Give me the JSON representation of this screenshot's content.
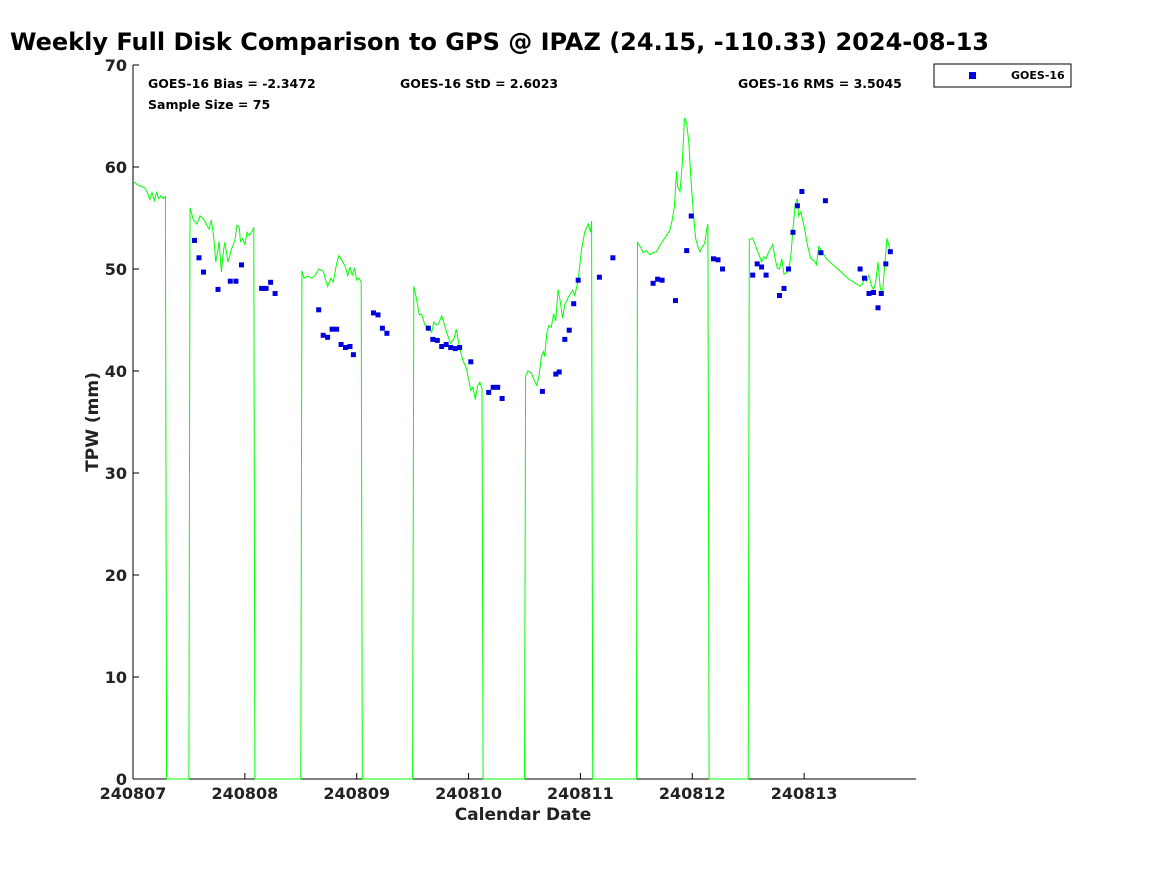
{
  "chart_data": {
    "type": "line+scatter",
    "title": "Weekly Full Disk Comparison to GPS @ IPAZ (24.15, -110.33) 2024-08-13",
    "xlabel": "Calendar Date",
    "ylabel": "TPW (mm)",
    "xlim": [
      0,
      7
    ],
    "ylim": [
      0,
      70
    ],
    "xticks": [
      0,
      1,
      2,
      3,
      4,
      5,
      6
    ],
    "xtick_labels": [
      "240807",
      "240808",
      "240809",
      "240810",
      "240811",
      "240812",
      "240813"
    ],
    "yticks": [
      0,
      10,
      20,
      30,
      40,
      50,
      60,
      70
    ],
    "grid": false,
    "legend_position": "top-right (outside plot)",
    "stats": {
      "bias": "GOES-16 Bias = -2.3472",
      "std": "GOES-16 StD = 2.6023",
      "rms": "GOES-16 RMS = 3.5045",
      "sample": "Sample Size = 75"
    },
    "series": [
      {
        "type": "line",
        "color": "#00ff00",
        "points": [
          [
            0.0,
            58.6
          ],
          [
            0.05,
            58.2
          ],
          [
            0.1,
            58.0
          ],
          [
            0.13,
            57.5
          ],
          [
            0.15,
            56.8
          ],
          [
            0.17,
            57.5
          ],
          [
            0.19,
            56.7
          ],
          [
            0.21,
            57.5
          ],
          [
            0.23,
            56.9
          ],
          [
            0.25,
            57.2
          ],
          [
            0.27,
            56.9
          ],
          [
            0.29,
            57.1
          ],
          [
            0.3,
            0
          ],
          [
            0.5,
            0
          ],
          [
            0.51,
            56.0
          ],
          [
            0.54,
            54.8
          ],
          [
            0.57,
            54.4
          ],
          [
            0.6,
            55.2
          ],
          [
            0.63,
            54.9
          ],
          [
            0.66,
            54.3
          ],
          [
            0.68,
            53.9
          ],
          [
            0.7,
            54.8
          ],
          [
            0.72,
            53.3
          ],
          [
            0.74,
            50.7
          ],
          [
            0.76,
            51.9
          ],
          [
            0.77,
            52.7
          ],
          [
            0.79,
            49.7
          ],
          [
            0.81,
            51.9
          ],
          [
            0.82,
            52.6
          ],
          [
            0.85,
            50.7
          ],
          [
            0.88,
            51.9
          ],
          [
            0.91,
            52.8
          ],
          [
            0.93,
            54.3
          ],
          [
            0.95,
            54.1
          ],
          [
            0.96,
            52.7
          ],
          [
            0.98,
            53.0
          ],
          [
            1.0,
            52.4
          ],
          [
            1.02,
            53.6
          ],
          [
            1.04,
            53.3
          ],
          [
            1.07,
            53.8
          ],
          [
            1.08,
            54.1
          ],
          [
            1.09,
            0
          ],
          [
            1.5,
            0
          ],
          [
            1.51,
            49.8
          ],
          [
            1.53,
            49.1
          ],
          [
            1.56,
            49.3
          ],
          [
            1.6,
            49.1
          ],
          [
            1.63,
            49.4
          ],
          [
            1.66,
            50.0
          ],
          [
            1.7,
            49.8
          ],
          [
            1.72,
            49.0
          ],
          [
            1.74,
            48.3
          ],
          [
            1.77,
            49.1
          ],
          [
            1.79,
            48.7
          ],
          [
            1.82,
            50.5
          ],
          [
            1.84,
            51.3
          ],
          [
            1.87,
            50.8
          ],
          [
            1.9,
            50.2
          ],
          [
            1.92,
            49.3
          ],
          [
            1.94,
            50.2
          ],
          [
            1.96,
            49.4
          ],
          [
            1.98,
            50.1
          ],
          [
            2.0,
            48.9
          ],
          [
            2.02,
            49.1
          ],
          [
            2.04,
            48.7
          ],
          [
            2.05,
            0
          ],
          [
            2.5,
            0
          ],
          [
            2.51,
            48.3
          ],
          [
            2.53,
            47.3
          ],
          [
            2.56,
            45.5
          ],
          [
            2.58,
            45.6
          ],
          [
            2.61,
            44.5
          ],
          [
            2.64,
            44.3
          ],
          [
            2.67,
            43.8
          ],
          [
            2.69,
            44.8
          ],
          [
            2.71,
            44.5
          ],
          [
            2.73,
            44.6
          ],
          [
            2.76,
            45.4
          ],
          [
            2.78,
            44.7
          ],
          [
            2.81,
            43.6
          ],
          [
            2.84,
            42.7
          ],
          [
            2.87,
            43.2
          ],
          [
            2.89,
            44.1
          ],
          [
            2.92,
            42.3
          ],
          [
            2.95,
            41.0
          ],
          [
            2.98,
            40.3
          ],
          [
            3.0,
            39.2
          ],
          [
            3.02,
            38.1
          ],
          [
            3.04,
            38.4
          ],
          [
            3.06,
            37.2
          ],
          [
            3.08,
            38.5
          ],
          [
            3.1,
            38.9
          ],
          [
            3.12,
            38.3
          ],
          [
            3.13,
            0
          ],
          [
            3.5,
            0
          ],
          [
            3.51,
            39.5
          ],
          [
            3.53,
            40.0
          ],
          [
            3.56,
            39.8
          ],
          [
            3.59,
            39.0
          ],
          [
            3.61,
            38.6
          ],
          [
            3.63,
            39.5
          ],
          [
            3.65,
            41.4
          ],
          [
            3.67,
            41.9
          ],
          [
            3.68,
            41.4
          ],
          [
            3.7,
            43.8
          ],
          [
            3.72,
            44.5
          ],
          [
            3.74,
            44.3
          ],
          [
            3.76,
            45.6
          ],
          [
            3.78,
            44.9
          ],
          [
            3.8,
            48.0
          ],
          [
            3.82,
            46.8
          ],
          [
            3.84,
            45.2
          ],
          [
            3.86,
            46.5
          ],
          [
            3.9,
            47.4
          ],
          [
            3.93,
            47.9
          ],
          [
            3.95,
            47.4
          ],
          [
            3.98,
            48.9
          ],
          [
            4.01,
            51.9
          ],
          [
            4.04,
            53.7
          ],
          [
            4.07,
            54.4
          ],
          [
            4.09,
            53.6
          ],
          [
            4.1,
            54.7
          ],
          [
            4.11,
            0
          ],
          [
            4.5,
            0
          ],
          [
            4.51,
            52.6
          ],
          [
            4.54,
            52.1
          ],
          [
            4.56,
            51.6
          ],
          [
            4.59,
            51.8
          ],
          [
            4.62,
            51.4
          ],
          [
            4.65,
            51.6
          ],
          [
            4.68,
            51.7
          ],
          [
            4.71,
            52.3
          ],
          [
            4.74,
            52.8
          ],
          [
            4.77,
            53.3
          ],
          [
            4.8,
            53.8
          ],
          [
            4.82,
            54.8
          ],
          [
            4.84,
            56.1
          ],
          [
            4.86,
            59.6
          ],
          [
            4.87,
            58.0
          ],
          [
            4.89,
            57.6
          ],
          [
            4.91,
            60.2
          ],
          [
            4.93,
            64.8
          ],
          [
            4.95,
            64.3
          ],
          [
            4.97,
            62.3
          ],
          [
            4.99,
            58.4
          ],
          [
            5.01,
            55.5
          ],
          [
            5.03,
            53.0
          ],
          [
            5.05,
            52.2
          ],
          [
            5.07,
            51.7
          ],
          [
            5.09,
            52.2
          ],
          [
            5.11,
            52.5
          ],
          [
            5.13,
            53.9
          ],
          [
            5.14,
            54.4
          ],
          [
            5.15,
            0
          ],
          [
            5.5,
            0
          ],
          [
            5.51,
            52.9
          ],
          [
            5.54,
            53.0
          ],
          [
            5.56,
            52.5
          ],
          [
            5.58,
            51.8
          ],
          [
            5.6,
            51.3
          ],
          [
            5.62,
            50.7
          ],
          [
            5.64,
            51.2
          ],
          [
            5.66,
            51.0
          ],
          [
            5.68,
            51.6
          ],
          [
            5.7,
            52.0
          ],
          [
            5.72,
            52.4
          ],
          [
            5.74,
            51.0
          ],
          [
            5.76,
            50.1
          ],
          [
            5.78,
            50.0
          ],
          [
            5.8,
            51.0
          ],
          [
            5.82,
            49.5
          ],
          [
            5.84,
            49.6
          ],
          [
            5.86,
            49.9
          ],
          [
            5.88,
            51.1
          ],
          [
            5.9,
            54.0
          ],
          [
            5.92,
            56.3
          ],
          [
            5.94,
            56.9
          ],
          [
            5.95,
            55.2
          ],
          [
            5.97,
            55.6
          ],
          [
            6.0,
            54.2
          ],
          [
            6.03,
            52.3
          ],
          [
            6.06,
            51.0
          ],
          [
            6.09,
            50.8
          ],
          [
            6.11,
            50.4
          ],
          [
            6.13,
            52.2
          ],
          [
            6.16,
            51.7
          ],
          [
            6.2,
            51.0
          ],
          [
            6.3,
            50.0
          ],
          [
            6.4,
            49.0
          ],
          [
            6.5,
            48.3
          ],
          [
            6.52,
            48.5
          ],
          [
            6.54,
            49.2
          ],
          [
            6.56,
            48.8
          ],
          [
            6.58,
            49.4
          ],
          [
            6.6,
            48.4
          ],
          [
            6.62,
            48.0
          ],
          [
            6.64,
            48.7
          ],
          [
            6.66,
            50.7
          ],
          [
            6.68,
            48.2
          ],
          [
            6.7,
            47.4
          ],
          [
            6.72,
            50.3
          ],
          [
            6.74,
            53.0
          ],
          [
            6.76,
            52.2
          ],
          [
            6.77,
            51.5
          ]
        ]
      },
      {
        "name": "GOES-16",
        "type": "scatter",
        "color": "#0000dd",
        "points": [
          [
            0.55,
            52.8
          ],
          [
            0.59,
            51.1
          ],
          [
            0.63,
            49.7
          ],
          [
            0.76,
            48.0
          ],
          [
            0.87,
            48.8
          ],
          [
            0.92,
            48.8
          ],
          [
            0.97,
            50.4
          ],
          [
            1.15,
            48.1
          ],
          [
            1.19,
            48.1
          ],
          [
            1.23,
            48.7
          ],
          [
            1.27,
            47.6
          ],
          [
            1.66,
            46.0
          ],
          [
            1.7,
            43.5
          ],
          [
            1.74,
            43.3
          ],
          [
            1.78,
            44.1
          ],
          [
            1.82,
            44.1
          ],
          [
            1.86,
            42.6
          ],
          [
            1.9,
            42.3
          ],
          [
            1.94,
            42.4
          ],
          [
            1.97,
            41.6
          ],
          [
            2.15,
            45.7
          ],
          [
            2.19,
            45.5
          ],
          [
            2.23,
            44.2
          ],
          [
            2.27,
            43.7
          ],
          [
            2.64,
            44.2
          ],
          [
            2.68,
            43.1
          ],
          [
            2.72,
            43.0
          ],
          [
            2.76,
            42.4
          ],
          [
            2.8,
            42.6
          ],
          [
            2.84,
            42.3
          ],
          [
            2.88,
            42.2
          ],
          [
            2.92,
            42.3
          ],
          [
            3.02,
            40.9
          ],
          [
            3.18,
            37.9
          ],
          [
            3.22,
            38.4
          ],
          [
            3.26,
            38.4
          ],
          [
            3.3,
            37.3
          ],
          [
            3.66,
            38.0
          ],
          [
            3.78,
            39.7
          ],
          [
            3.81,
            39.9
          ],
          [
            3.86,
            43.1
          ],
          [
            3.9,
            44.0
          ],
          [
            3.94,
            46.6
          ],
          [
            3.98,
            48.9
          ],
          [
            4.17,
            49.2
          ],
          [
            4.29,
            51.1
          ],
          [
            4.65,
            48.6
          ],
          [
            4.69,
            49.0
          ],
          [
            4.73,
            48.9
          ],
          [
            4.85,
            46.9
          ],
          [
            4.95,
            51.8
          ],
          [
            4.99,
            55.2
          ],
          [
            5.19,
            51.0
          ],
          [
            5.23,
            50.9
          ],
          [
            5.27,
            50.0
          ],
          [
            5.54,
            49.4
          ],
          [
            5.58,
            50.5
          ],
          [
            5.62,
            50.2
          ],
          [
            5.66,
            49.4
          ],
          [
            5.78,
            47.4
          ],
          [
            5.82,
            48.1
          ],
          [
            5.86,
            50.0
          ],
          [
            5.9,
            53.6
          ],
          [
            5.94,
            56.2
          ],
          [
            5.98,
            57.6
          ],
          [
            6.15,
            51.6
          ],
          [
            6.19,
            56.7
          ],
          [
            6.5,
            50.0
          ],
          [
            6.54,
            49.1
          ],
          [
            6.58,
            47.6
          ],
          [
            6.62,
            47.7
          ],
          [
            6.66,
            46.2
          ],
          [
            6.69,
            47.6
          ],
          [
            6.73,
            50.5
          ],
          [
            6.77,
            51.7
          ]
        ]
      }
    ]
  }
}
